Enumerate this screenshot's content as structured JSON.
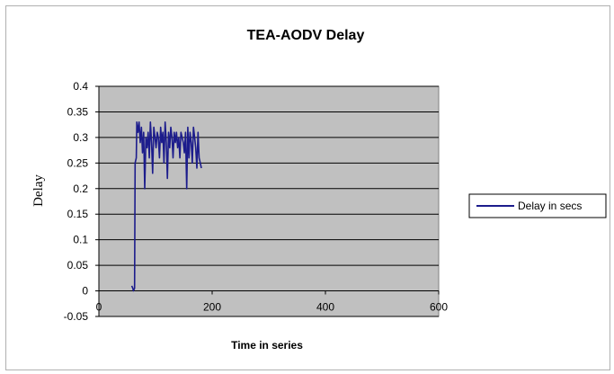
{
  "chart_data": {
    "type": "line",
    "title": "TEA-AODV Delay",
    "xlabel": "Time in series",
    "ylabel": "Delay",
    "xlim": [
      0,
      600
    ],
    "ylim": [
      -0.05,
      0.4
    ],
    "xticks": [
      "0",
      "200",
      "400",
      "600"
    ],
    "yticks": [
      "-0.05",
      "0",
      "0.05",
      "0.1",
      "0.15",
      "0.2",
      "0.25",
      "0.3",
      "0.35",
      "0.4"
    ],
    "grid": "horizontal",
    "legend_position": "right",
    "series": [
      {
        "name": "Delay in secs",
        "color": "#1c1c8c",
        "x": [
          58,
          60,
          61,
          63,
          64,
          66,
          67,
          69,
          71,
          73,
          75,
          77,
          79,
          81,
          83,
          85,
          87,
          89,
          91,
          93,
          95,
          97,
          99,
          101,
          103,
          105,
          107,
          109,
          111,
          113,
          115,
          117,
          119,
          121,
          123,
          125,
          127,
          129,
          131,
          133,
          135,
          137,
          139,
          141,
          143,
          145,
          147,
          149,
          151,
          153,
          155,
          157,
          159,
          161,
          163,
          165,
          167,
          169,
          171,
          173,
          175,
          177,
          179,
          181
        ],
        "y": [
          0.01,
          0.005,
          0.0,
          0.005,
          0.25,
          0.26,
          0.33,
          0.31,
          0.33,
          0.29,
          0.32,
          0.27,
          0.31,
          0.2,
          0.3,
          0.28,
          0.31,
          0.26,
          0.33,
          0.29,
          0.23,
          0.32,
          0.3,
          0.28,
          0.31,
          0.3,
          0.26,
          0.32,
          0.29,
          0.31,
          0.25,
          0.33,
          0.29,
          0.22,
          0.31,
          0.28,
          0.32,
          0.3,
          0.26,
          0.31,
          0.29,
          0.31,
          0.28,
          0.3,
          0.26,
          0.31,
          0.3,
          0.29,
          0.27,
          0.31,
          0.2,
          0.32,
          0.26,
          0.31,
          0.29,
          0.25,
          0.32,
          0.3,
          0.28,
          0.24,
          0.31,
          0.26,
          0.25,
          0.24
        ]
      }
    ]
  }
}
